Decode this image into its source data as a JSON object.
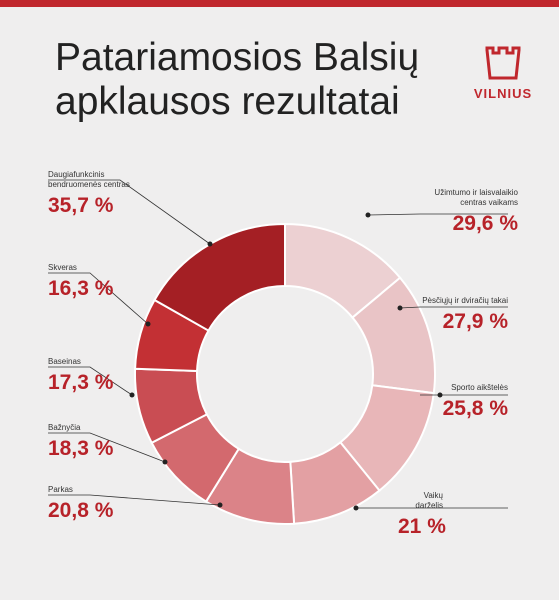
{
  "header": {
    "title_line1": "Patariamosios Balsių",
    "title_line2": "apklausos rezultatai"
  },
  "logo": {
    "text": "VILNIUS",
    "icon": "castle-tower-icon"
  },
  "colors": {
    "accent": "#c0272d",
    "value_text": "#b72229",
    "background": "#efeeee"
  },
  "chart_data": {
    "type": "pie",
    "donut": true,
    "unit": "%",
    "slices": [
      {
        "name": "Užimtumo ir laisvalaikio\ncentras vaikams",
        "value": 29.6,
        "label": "29,6 %",
        "color": "#ecd0d2"
      },
      {
        "name": "Pėsčiųjų ir dviračių takai",
        "value": 27.9,
        "label": "27,9 %",
        "color": "#e9c4c6"
      },
      {
        "name": "Sporto aikštelės",
        "value": 25.8,
        "label": "25,8 %",
        "color": "#e8b6b8"
      },
      {
        "name": "Vaikų darželis",
        "value": 21,
        "label": "21 %",
        "color": "#e3a0a3"
      },
      {
        "name": "Parkas",
        "value": 20.8,
        "label": "20,8 %",
        "color": "#db8388"
      },
      {
        "name": "Bažnyčia",
        "value": 18.3,
        "label": "18,3 %",
        "color": "#d3696e"
      },
      {
        "name": "Baseinas",
        "value": 17.3,
        "label": "17,3 %",
        "color": "#c94d53"
      },
      {
        "name": "Skveras",
        "value": 16.3,
        "label": "16,3 %",
        "color": "#c33034"
      },
      {
        "name": "Daugiafunkcinis\nbendruomenės centras",
        "value": 35.7,
        "label": "35,7 %",
        "color": "#a41f24"
      }
    ]
  }
}
